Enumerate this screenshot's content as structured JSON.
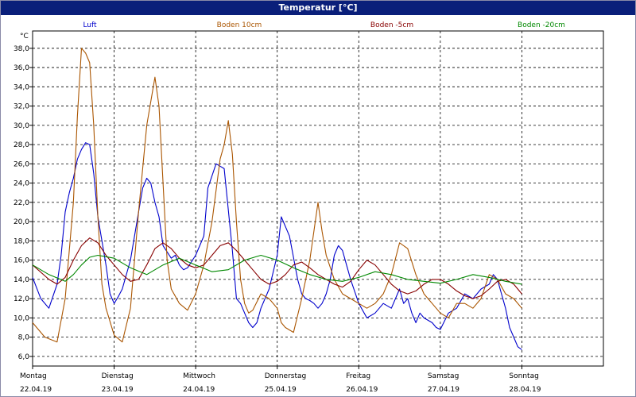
{
  "title": "Temperatur [°C]",
  "chart_data": {
    "type": "line",
    "title": "Temperatur [°C]",
    "ylabel": "°C",
    "ylim": [
      5.0,
      39.8
    ],
    "yticks": [
      "38,0",
      "36,0",
      "34,0",
      "32,0",
      "30,0",
      "28,0",
      "26,0",
      "24,0",
      "22,0",
      "20,0",
      "18,0",
      "16,0",
      "14,0",
      "12,0",
      "10,0",
      "8,0",
      "6,0"
    ],
    "ytick_values": [
      38,
      36,
      34,
      32,
      30,
      28,
      26,
      24,
      22,
      20,
      18,
      16,
      14,
      12,
      10,
      8,
      6
    ],
    "days": [
      {
        "name": "Montag",
        "date": "22.04.19"
      },
      {
        "name": "Dienstag",
        "date": "23.04.19"
      },
      {
        "name": "Mittwoch",
        "date": "24.04.19"
      },
      {
        "name": "Donnerstag",
        "date": "25.04.19"
      },
      {
        "name": "Freitag",
        "date": "26.04.19"
      },
      {
        "name": "Samstag",
        "date": "27.04.19"
      },
      {
        "name": "Sonntag",
        "date": "28.04.19"
      }
    ],
    "xlim": [
      0,
      7
    ],
    "grid": true,
    "legend_position": "top",
    "series": [
      {
        "name": "Luft",
        "color": "#0000cc",
        "x": [
          0.0,
          0.1,
          0.2,
          0.3,
          0.35,
          0.4,
          0.45,
          0.5,
          0.55,
          0.6,
          0.65,
          0.7,
          0.75,
          0.8,
          0.9,
          0.95,
          1.0,
          1.05,
          1.1,
          1.2,
          1.3,
          1.35,
          1.4,
          1.45,
          1.5,
          1.55,
          1.6,
          1.7,
          1.75,
          1.8,
          1.85,
          1.9,
          2.0,
          2.1,
          2.15,
          2.25,
          2.35,
          2.45,
          2.5,
          2.55,
          2.6,
          2.65,
          2.7,
          2.75,
          2.8,
          2.9,
          3.0,
          3.05,
          3.15,
          3.25,
          3.3,
          3.35,
          3.4,
          3.45,
          3.5,
          3.55,
          3.6,
          3.65,
          3.7,
          3.75,
          3.8,
          3.85,
          3.9,
          4.0,
          4.1,
          4.2,
          4.3,
          4.4,
          4.5,
          4.55,
          4.6,
          4.65,
          4.7,
          4.75,
          4.8,
          4.9,
          4.95,
          5.0,
          5.1,
          5.2,
          5.3,
          5.4,
          5.5,
          5.6,
          5.65,
          5.7,
          5.75,
          5.8,
          5.85,
          5.9,
          5.95,
          6.0,
          6.1,
          6.2,
          6.3,
          6.4,
          6.45,
          6.5,
          6.55,
          6.6,
          6.65,
          6.7,
          6.75,
          6.8,
          6.85,
          6.9,
          6.95,
          7.0
        ],
        "y": [
          14.2,
          12.0,
          11.0,
          13.5,
          16.5,
          21.0,
          23.0,
          24.5,
          26.5,
          27.5,
          28.2,
          28.0,
          25.0,
          20.5,
          15.5,
          12.5,
          11.5,
          12.2,
          13.0,
          16.0,
          21.0,
          23.5,
          24.5,
          24.0,
          22.0,
          20.5,
          17.5,
          16.2,
          16.5,
          15.5,
          15.0,
          15.2,
          16.5,
          18.5,
          23.5,
          26.0,
          25.5,
          17.0,
          12.0,
          11.5,
          10.5,
          9.5,
          9.0,
          9.5,
          11.0,
          13.0,
          16.5,
          20.5,
          18.5,
          14.0,
          12.5,
          12.0,
          11.8,
          11.5,
          11.0,
          11.5,
          12.5,
          14.0,
          16.5,
          17.5,
          17.0,
          15.5,
          14.0,
          11.5,
          10.0,
          10.5,
          11.5,
          11.0,
          13.0,
          11.5,
          12.0,
          10.5,
          9.5,
          10.5,
          10.0,
          9.5,
          9.0,
          8.8,
          10.5,
          11.0,
          12.5,
          12.0,
          13.0,
          13.5,
          14.5,
          14.0,
          12.5,
          11.0,
          9.0,
          8.0,
          7.0,
          6.7,
          null,
          null,
          null,
          null,
          null,
          null,
          null,
          null,
          null,
          null,
          null,
          null,
          null,
          null,
          null,
          null
        ]
      },
      {
        "name": "Boden 10cm",
        "color": "#aa5500",
        "x": [
          0.0,
          0.15,
          0.3,
          0.4,
          0.5,
          0.55,
          0.6,
          0.65,
          0.7,
          0.75,
          0.8,
          0.85,
          0.9,
          1.0,
          1.1,
          1.2,
          1.3,
          1.4,
          1.5,
          1.55,
          1.6,
          1.65,
          1.7,
          1.8,
          1.9,
          2.0,
          2.1,
          2.2,
          2.3,
          2.35,
          2.4,
          2.45,
          2.5,
          2.55,
          2.6,
          2.65,
          2.7,
          2.8,
          2.9,
          3.0,
          3.05,
          3.1,
          3.2,
          3.3,
          3.4,
          3.5,
          3.55,
          3.6,
          3.7,
          3.8,
          3.9,
          4.0,
          4.1,
          4.2,
          4.3,
          4.4,
          4.5,
          4.6,
          4.7,
          4.8,
          4.9,
          5.0,
          5.1,
          5.2,
          5.3,
          5.4,
          5.5,
          5.6,
          5.7,
          5.8,
          5.9,
          6.0
        ],
        "y": [
          9.5,
          8.0,
          7.5,
          12.0,
          22.0,
          31.0,
          38.0,
          37.5,
          36.5,
          30.0,
          20.5,
          13.5,
          11.0,
          8.2,
          7.5,
          11.0,
          21.0,
          30.0,
          35.0,
          32.0,
          24.0,
          16.0,
          13.0,
          11.5,
          10.8,
          12.5,
          15.5,
          20.0,
          26.5,
          28.0,
          30.5,
          27.0,
          20.0,
          14.0,
          11.5,
          10.5,
          10.8,
          12.5,
          12.0,
          11.0,
          9.5,
          9.0,
          8.5,
          12.0,
          16.0,
          22.0,
          19.0,
          16.5,
          14.0,
          12.5,
          12.0,
          11.5,
          11.0,
          11.5,
          12.5,
          14.5,
          17.8,
          17.2,
          14.5,
          12.5,
          11.5,
          10.5,
          10.0,
          11.5,
          11.5,
          11.0,
          12.0,
          14.5,
          14.0,
          12.5,
          12.0,
          11.0
        ]
      },
      {
        "name": "Boden -5cm",
        "color": "#880000",
        "x": [
          0.0,
          0.2,
          0.3,
          0.4,
          0.5,
          0.6,
          0.7,
          0.8,
          0.9,
          1.0,
          1.1,
          1.2,
          1.3,
          1.4,
          1.5,
          1.6,
          1.7,
          1.8,
          1.9,
          2.0,
          2.1,
          2.2,
          2.3,
          2.4,
          2.5,
          2.6,
          2.7,
          2.8,
          2.9,
          3.0,
          3.1,
          3.2,
          3.3,
          3.4,
          3.5,
          3.6,
          3.7,
          3.8,
          3.9,
          4.0,
          4.1,
          4.2,
          4.3,
          4.4,
          4.5,
          4.6,
          4.7,
          4.8,
          4.9,
          5.0,
          5.1,
          5.2,
          5.3,
          5.4,
          5.5,
          5.6,
          5.7,
          5.8,
          5.9,
          6.0
        ],
        "y": [
          15.5,
          14.0,
          13.5,
          14.2,
          16.0,
          17.5,
          18.3,
          17.8,
          16.5,
          15.5,
          14.5,
          13.8,
          14.0,
          15.5,
          17.2,
          17.8,
          17.2,
          16.2,
          15.5,
          15.2,
          15.5,
          16.5,
          17.5,
          17.8,
          17.0,
          16.0,
          15.0,
          14.0,
          13.5,
          13.8,
          14.5,
          15.5,
          15.8,
          15.2,
          14.5,
          14.0,
          13.5,
          13.2,
          13.8,
          15.0,
          16.0,
          15.5,
          14.5,
          13.5,
          12.8,
          12.5,
          12.8,
          13.5,
          14.0,
          14.0,
          13.5,
          12.8,
          12.3,
          12.0,
          12.3,
          13.0,
          13.8,
          14.0,
          13.5,
          12.5
        ]
      },
      {
        "name": "Boden -20cm",
        "color": "#008800",
        "x": [
          0.0,
          0.2,
          0.4,
          0.5,
          0.6,
          0.7,
          0.8,
          1.0,
          1.2,
          1.4,
          1.6,
          1.8,
          2.0,
          2.2,
          2.4,
          2.6,
          2.8,
          3.0,
          3.2,
          3.4,
          3.6,
          3.8,
          4.0,
          4.2,
          4.4,
          4.6,
          4.8,
          5.0,
          5.2,
          5.4,
          5.6,
          5.8,
          6.0
        ],
        "y": [
          15.5,
          14.5,
          13.8,
          14.5,
          15.5,
          16.3,
          16.5,
          16.2,
          15.2,
          14.5,
          15.5,
          16.2,
          15.5,
          14.8,
          15.0,
          16.0,
          16.5,
          16.0,
          15.2,
          14.5,
          14.0,
          13.8,
          14.2,
          14.8,
          14.5,
          14.0,
          13.8,
          13.6,
          14.0,
          14.5,
          14.2,
          13.8,
          13.5
        ]
      }
    ]
  }
}
